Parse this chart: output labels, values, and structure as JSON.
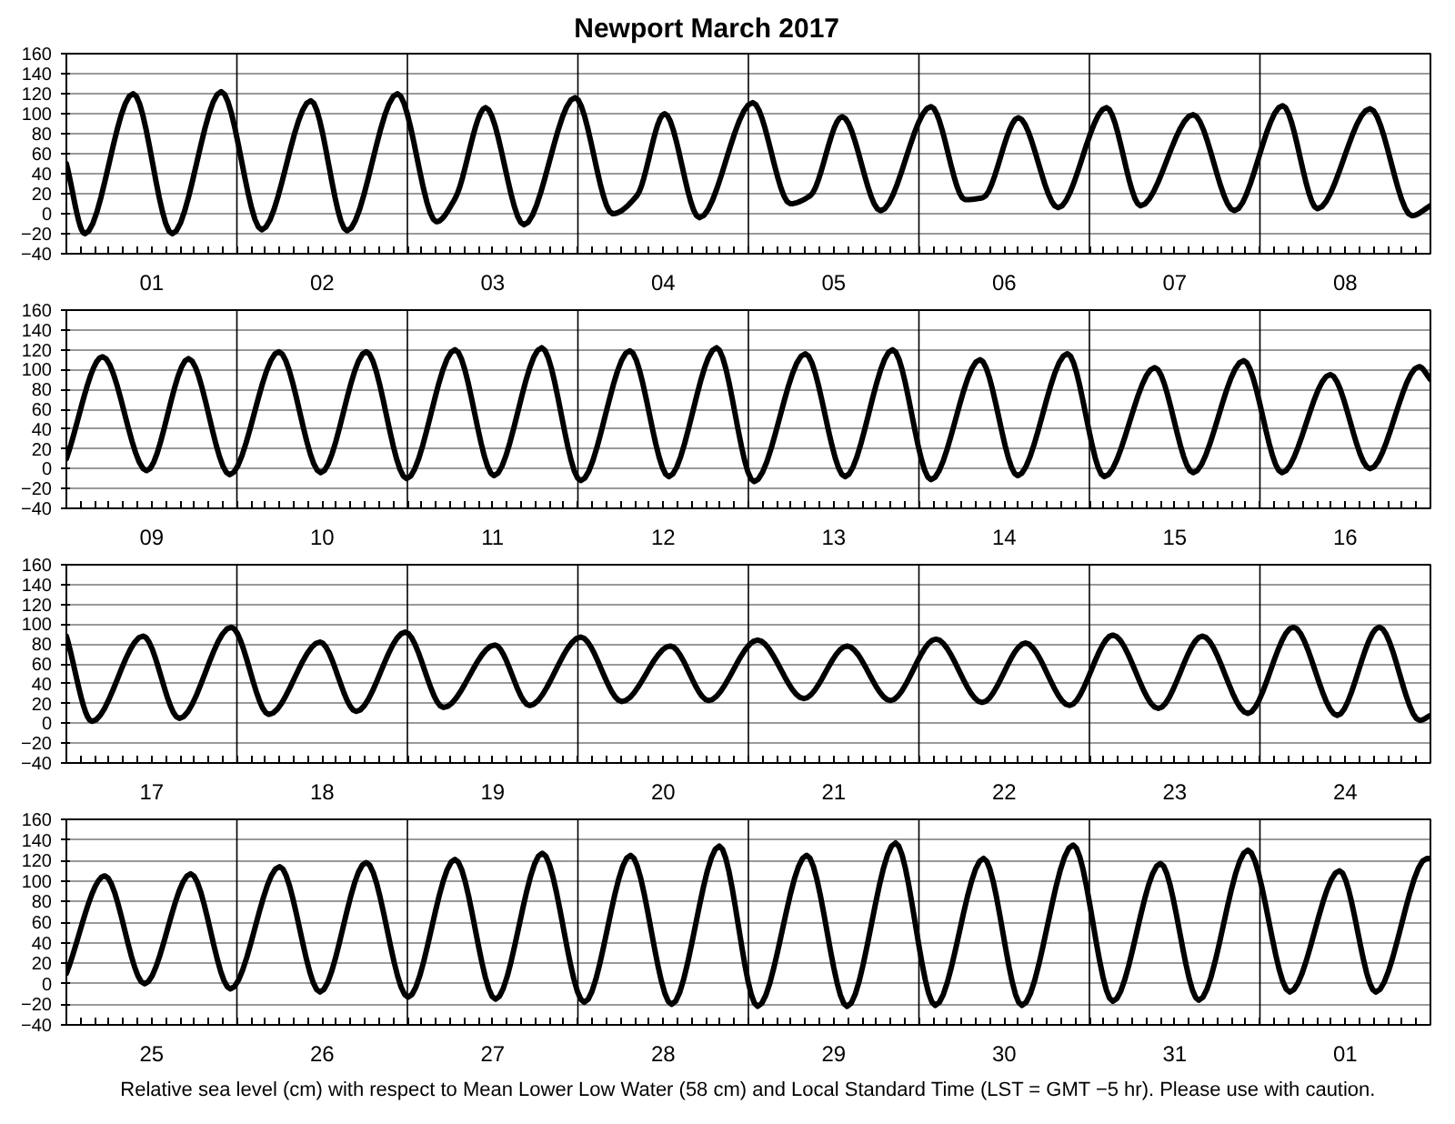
{
  "chart_data": [
    {
      "type": "line",
      "title": "Newport          March   2017",
      "xlim": [
        "2017-03-01T00:00",
        "2017-03-09T00:00"
      ],
      "ylim": [
        -40,
        160
      ],
      "yticks": [
        -40,
        -20,
        0,
        20,
        40,
        60,
        80,
        100,
        120,
        140,
        160
      ],
      "grid": "y",
      "line_style": "solid",
      "xticks": [
        {
          "value": "2017-03-01T12:00",
          "label": "01"
        },
        {
          "value": "2017-03-02T12:00",
          "label": "02"
        },
        {
          "value": "2017-03-03T12:00",
          "label": "03"
        },
        {
          "value": "2017-03-04T12:00",
          "label": "04"
        },
        {
          "value": "2017-03-05T12:00",
          "label": "05"
        },
        {
          "value": "2017-03-06T12:00",
          "label": "06"
        },
        {
          "value": "2017-03-07T12:00",
          "label": "07"
        },
        {
          "value": "2017-03-08T12:00",
          "label": "08"
        }
      ],
      "ref_lines": [
        {
          "axis": "x",
          "value": "2017-03-02",
          "color": "#000000"
        },
        {
          "axis": "x",
          "value": "2017-03-03",
          "color": "#000000"
        },
        {
          "axis": "x",
          "value": "2017-03-04",
          "color": "#000000"
        },
        {
          "axis": "x",
          "value": "2017-03-05",
          "color": "#000000"
        },
        {
          "axis": "x",
          "value": "2017-03-06",
          "color": "#000000"
        },
        {
          "axis": "x",
          "value": "2017-03-07",
          "color": "#000000"
        },
        {
          "axis": "x",
          "value": "2017-03-08",
          "color": "#000000"
        }
      ],
      "x": [
        "2017-03-01T00:00",
        "2017-03-01T02:36",
        "2017-03-01T09:24",
        "2017-03-01T14:54",
        "2017-03-01T21:48",
        "2017-03-02T03:30",
        "2017-03-02T10:24",
        "2017-03-02T15:30",
        "2017-03-02T22:36",
        "2017-03-03T04:06",
        "2017-03-03T06:42",
        "2017-03-03T11:00",
        "2017-03-03T16:24",
        "2017-03-03T23:36",
        "2017-03-04T04:54",
        "2017-03-04T08:18",
        "2017-03-04T12:12",
        "2017-03-04T17:06",
        "2017-03-05T00:36",
        "2017-03-05T05:54",
        "2017-03-05T08:42",
        "2017-03-05T13:12",
        "2017-03-05T18:36",
        "2017-03-06T01:42",
        "2017-03-06T06:30",
        "2017-03-06T09:00",
        "2017-03-06T14:00",
        "2017-03-06T19:36",
        "2017-03-07T02:24",
        "2017-03-07T07:12",
        "2017-03-07T14:36",
        "2017-03-07T20:24",
        "2017-03-08T03:12",
        "2017-03-08T08:06",
        "2017-03-08T15:30",
        "2017-03-08T21:24",
        "2017-03-09T00:00"
      ],
      "series": [
        {
          "color": "#000000",
          "values": [
            50,
            -20,
            120,
            -20,
            122,
            -16,
            113,
            -17,
            120,
            -8,
            15,
            106,
            -11,
            116,
            0,
            18,
            100,
            -4,
            111,
            10,
            18,
            97,
            3,
            107,
            14,
            16,
            96,
            6,
            106,
            8,
            99,
            3,
            108,
            5,
            105,
            -2,
            8
          ]
        }
      ]
    },
    {
      "type": "line",
      "xlim": [
        "2017-03-09T00:00",
        "2017-03-17T00:00"
      ],
      "ylim": [
        -40,
        160
      ],
      "yticks": [
        -40,
        -20,
        0,
        20,
        40,
        60,
        80,
        100,
        120,
        140,
        160
      ],
      "grid": "y",
      "line_style": "solid",
      "xticks": [
        {
          "value": "2017-03-09T12:00",
          "label": "09"
        },
        {
          "value": "2017-03-10T12:00",
          "label": "10"
        },
        {
          "value": "2017-03-11T12:00",
          "label": "11"
        },
        {
          "value": "2017-03-12T12:00",
          "label": "12"
        },
        {
          "value": "2017-03-13T12:00",
          "label": "13"
        },
        {
          "value": "2017-03-14T12:00",
          "label": "14"
        },
        {
          "value": "2017-03-15T12:00",
          "label": "15"
        },
        {
          "value": "2017-03-16T12:00",
          "label": "16"
        }
      ],
      "ref_lines": [
        {
          "axis": "x",
          "value": "2017-03-10",
          "color": "#000000"
        },
        {
          "axis": "x",
          "value": "2017-03-11",
          "color": "#000000"
        },
        {
          "axis": "x",
          "value": "2017-03-12",
          "color": "#000000"
        },
        {
          "axis": "x",
          "value": "2017-03-13",
          "color": "#000000"
        },
        {
          "axis": "x",
          "value": "2017-03-14",
          "color": "#000000"
        },
        {
          "axis": "x",
          "value": "2017-03-15",
          "color": "#000000"
        },
        {
          "axis": "x",
          "value": "2017-03-16",
          "color": "#000000"
        }
      ],
      "x": [
        "2017-03-09T00:00",
        "2017-03-09T05:06",
        "2017-03-09T11:18",
        "2017-03-09T17:12",
        "2017-03-09T23:00",
        "2017-03-10T05:54",
        "2017-03-10T11:48",
        "2017-03-10T18:12",
        "2017-03-10T23:54",
        "2017-03-11T06:42",
        "2017-03-11T12:12",
        "2017-03-11T18:54",
        "2017-03-12T00:24",
        "2017-03-12T07:18",
        "2017-03-12T12:48",
        "2017-03-12T19:30",
        "2017-03-13T00:48",
        "2017-03-13T08:00",
        "2017-03-13T13:36",
        "2017-03-13T20:18",
        "2017-03-14T01:42",
        "2017-03-14T08:36",
        "2017-03-14T13:54",
        "2017-03-14T20:54",
        "2017-03-15T02:06",
        "2017-03-15T09:12",
        "2017-03-15T14:36",
        "2017-03-15T21:42",
        "2017-03-16T03:06",
        "2017-03-16T09:54",
        "2017-03-16T15:30",
        "2017-03-16T22:24",
        "2017-03-17T00:00"
      ],
      "series": [
        {
          "color": "#000000",
          "values": [
            10,
            113,
            -2,
            111,
            -6,
            118,
            -4,
            118,
            -10,
            120,
            -7,
            122,
            -12,
            119,
            -8,
            122,
            -13,
            116,
            -8,
            120,
            -11,
            110,
            -7,
            116,
            -8,
            102,
            -4,
            109,
            -4,
            95,
            0,
            103,
            90
          ]
        }
      ]
    },
    {
      "type": "line",
      "xlim": [
        "2017-03-17T00:00",
        "2017-03-25T00:00"
      ],
      "ylim": [
        -40,
        160
      ],
      "yticks": [
        -40,
        -20,
        0,
        20,
        40,
        60,
        80,
        100,
        120,
        140,
        160
      ],
      "grid": "y",
      "line_style": "solid",
      "xticks": [
        {
          "value": "2017-03-17T12:00",
          "label": "17"
        },
        {
          "value": "2017-03-18T12:00",
          "label": "18"
        },
        {
          "value": "2017-03-19T12:00",
          "label": "19"
        },
        {
          "value": "2017-03-20T12:00",
          "label": "20"
        },
        {
          "value": "2017-03-21T12:00",
          "label": "21"
        },
        {
          "value": "2017-03-22T12:00",
          "label": "22"
        },
        {
          "value": "2017-03-23T12:00",
          "label": "23"
        },
        {
          "value": "2017-03-24T12:00",
          "label": "24"
        }
      ],
      "ref_lines": [
        {
          "axis": "x",
          "value": "2017-03-18",
          "color": "#000000"
        },
        {
          "axis": "x",
          "value": "2017-03-19",
          "color": "#000000"
        },
        {
          "axis": "x",
          "value": "2017-03-20",
          "color": "#000000"
        },
        {
          "axis": "x",
          "value": "2017-03-21",
          "color": "#000000"
        },
        {
          "axis": "x",
          "value": "2017-03-22",
          "color": "#000000"
        },
        {
          "axis": "x",
          "value": "2017-03-23",
          "color": "#000000"
        },
        {
          "axis": "x",
          "value": "2017-03-24",
          "color": "#000000"
        }
      ],
      "x": [
        "2017-03-17T00:00",
        "2017-03-17T03:36",
        "2017-03-17T10:48",
        "2017-03-17T15:54",
        "2017-03-17T23:12",
        "2017-03-18T04:30",
        "2017-03-18T11:42",
        "2017-03-18T16:48",
        "2017-03-18T23:42",
        "2017-03-19T05:06",
        "2017-03-19T12:18",
        "2017-03-19T17:12",
        "2017-03-20T00:24",
        "2017-03-20T06:12",
        "2017-03-20T13:00",
        "2017-03-20T18:24",
        "2017-03-21T01:18",
        "2017-03-21T07:48",
        "2017-03-21T13:54",
        "2017-03-21T20:00",
        "2017-03-22T02:24",
        "2017-03-22T08:54",
        "2017-03-22T15:00",
        "2017-03-22T21:12",
        "2017-03-23T03:18",
        "2017-03-23T09:42",
        "2017-03-23T15:54",
        "2017-03-23T22:18",
        "2017-03-24T04:42",
        "2017-03-24T10:54",
        "2017-03-24T16:48",
        "2017-03-24T22:30",
        "2017-03-25T00:00"
      ],
      "series": [
        {
          "color": "#000000",
          "values": [
            88,
            2,
            88,
            5,
            97,
            9,
            82,
            12,
            92,
            16,
            79,
            18,
            87,
            22,
            78,
            23,
            84,
            25,
            78,
            23,
            85,
            21,
            81,
            18,
            89,
            15,
            88,
            10,
            97,
            8,
            97,
            3,
            8
          ]
        }
      ]
    },
    {
      "type": "line",
      "xlim": [
        "2017-03-25T00:00",
        "2017-04-02T00:00"
      ],
      "ylim": [
        -40,
        160
      ],
      "yticks": [
        -40,
        -20,
        0,
        20,
        40,
        60,
        80,
        100,
        120,
        140,
        160
      ],
      "grid": "y",
      "line_style": "solid",
      "xticks": [
        {
          "value": "2017-03-25T12:00",
          "label": "25"
        },
        {
          "value": "2017-03-26T12:00",
          "label": "26"
        },
        {
          "value": "2017-03-27T12:00",
          "label": "27"
        },
        {
          "value": "2017-03-28T12:00",
          "label": "28"
        },
        {
          "value": "2017-03-29T12:00",
          "label": "29"
        },
        {
          "value": "2017-03-30T12:00",
          "label": "30"
        },
        {
          "value": "2017-03-31T12:00",
          "label": "31"
        },
        {
          "value": "2017-04-01T12:00",
          "label": "01"
        }
      ],
      "ref_lines": [
        {
          "axis": "x",
          "value": "2017-03-26",
          "color": "#000000"
        },
        {
          "axis": "x",
          "value": "2017-03-27",
          "color": "#000000"
        },
        {
          "axis": "x",
          "value": "2017-03-28",
          "color": "#000000"
        },
        {
          "axis": "x",
          "value": "2017-03-29",
          "color": "#000000"
        },
        {
          "axis": "x",
          "value": "2017-03-30",
          "color": "#000000"
        },
        {
          "axis": "x",
          "value": "2017-03-31",
          "color": "#000000"
        },
        {
          "axis": "x",
          "value": "2017-04-01",
          "color": "#000000"
        }
      ],
      "annotations": [
        "Relative sea level (cm) with respect to Mean Lower Low Water (58 cm) and Local Standard Time (LST = GMT −5 hr). Please use with caution."
      ],
      "x": [
        "2017-03-25T00:00",
        "2017-03-25T05:24",
        "2017-03-25T11:00",
        "2017-03-25T17:30",
        "2017-03-25T23:06",
        "2017-03-26T06:00",
        "2017-03-26T11:42",
        "2017-03-26T18:12",
        "2017-03-27T00:06",
        "2017-03-27T06:42",
        "2017-03-27T12:24",
        "2017-03-27T19:00",
        "2017-03-28T00:54",
        "2017-03-28T07:24",
        "2017-03-28T13:12",
        "2017-03-28T19:54",
        "2017-03-29T01:18",
        "2017-03-29T08:12",
        "2017-03-29T13:54",
        "2017-03-29T20:42",
        "2017-03-30T02:18",
        "2017-03-30T09:06",
        "2017-03-30T14:30",
        "2017-03-30T21:42",
        "2017-03-31T03:18",
        "2017-03-31T10:00",
        "2017-03-31T15:24",
        "2017-03-31T22:18",
        "2017-04-01T04:12",
        "2017-04-01T11:12",
        "2017-04-01T16:18",
        "2017-04-01T23:30",
        "2017-04-02T00:00"
      ],
      "series": [
        {
          "color": "#000000",
          "values": [
            10,
            105,
            0,
            107,
            -5,
            114,
            -8,
            118,
            -13,
            121,
            -15,
            127,
            -18,
            125,
            -20,
            134,
            -22,
            125,
            -22,
            137,
            -21,
            122,
            -21,
            135,
            -17,
            117,
            -16,
            130,
            -8,
            110,
            -8,
            122,
            122
          ]
        }
      ]
    }
  ]
}
